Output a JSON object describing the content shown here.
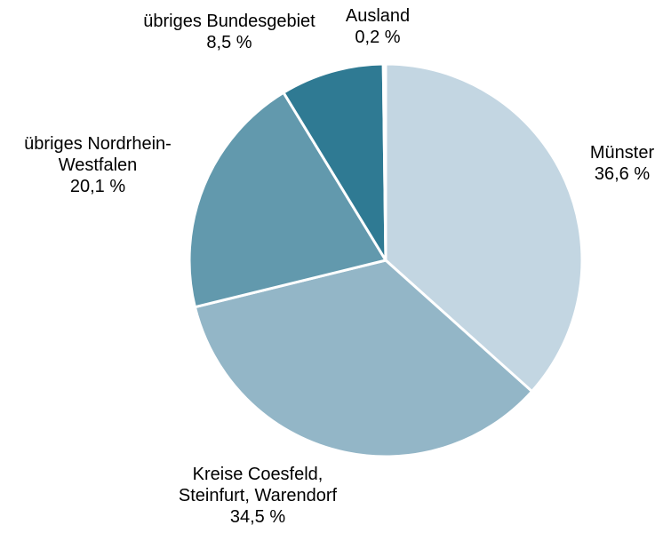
{
  "chart_data": {
    "type": "pie",
    "categories": [
      "Münster",
      "Kreise Coesfeld,\nSteinfurt, Warendorf",
      "übriges Nordrhein-\nWestfalen",
      "übriges Bundesgebiet",
      "Ausland"
    ],
    "values": [
      36.6,
      34.5,
      20.1,
      8.5,
      0.2
    ],
    "value_labels": [
      "36,6 %",
      "34,5 %",
      "20,1 %",
      "8,5 %",
      "0,2 %"
    ],
    "colors": [
      "#c3d6e2",
      "#93b6c7",
      "#6299ad",
      "#2f7a93",
      "#1d5d78"
    ]
  }
}
